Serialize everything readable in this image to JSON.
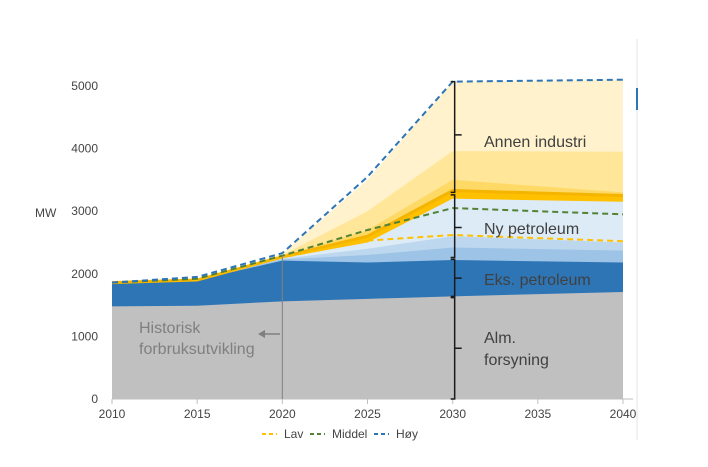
{
  "chart_data": {
    "type": "area",
    "title": "",
    "xlabel": "",
    "ylabel": "MW",
    "ylim": [
      0,
      5000
    ],
    "xlim": [
      2010,
      2040
    ],
    "x_ticks": [
      "2010",
      "2015",
      "2020",
      "2025",
      "2030",
      "2035",
      "2040"
    ],
    "y_ticks": [
      "0",
      "1000",
      "2000",
      "3000",
      "4000",
      "5000"
    ],
    "x": [
      2010,
      2015,
      2020,
      2025,
      2030,
      2040
    ],
    "stacked_areas": [
      {
        "name": "Alm. forsyning",
        "color": "#c0c0c0",
        "top": [
          1480,
          1490,
          1560,
          1600,
          1640,
          1710
        ]
      },
      {
        "name": "Eks. petroleum",
        "color": "#2e75b6",
        "top": [
          1860,
          1900,
          2210,
          2180,
          2220,
          2180
        ]
      },
      {
        "name": "Ny petroleum (lav)",
        "color": "#9dc3e6",
        "top": [
          1860,
          1900,
          2230,
          2300,
          2420,
          2370
        ]
      },
      {
        "name": "Ny petroleum (middel)",
        "color": "#bdd7ee",
        "top": [
          1860,
          1900,
          2240,
          2400,
          2600,
          2500
        ]
      },
      {
        "name": "Ny petroleum (høy)",
        "color": "#ddebf7",
        "top": [
          1860,
          1900,
          2250,
          2500,
          3200,
          3150
        ]
      },
      {
        "name": "Annen industri (lav)",
        "color": "#ffc000",
        "top": [
          1860,
          1900,
          2270,
          2600,
          3330,
          3250
        ]
      },
      {
        "name": "Annen industri (middel)",
        "color": "#ffd966",
        "top": [
          1860,
          1900,
          2280,
          2700,
          3500,
          3300
        ]
      },
      {
        "name": "Annen industri (middel-høy)",
        "color": "#ffe699",
        "top": [
          1860,
          1900,
          2300,
          3000,
          3960,
          3950
        ]
      },
      {
        "name": "Annen industri (høy)",
        "color": "#fff2cc",
        "top": [
          1860,
          1900,
          2320,
          3500,
          5070,
          5100
        ]
      }
    ],
    "series": [
      {
        "name": "Lav",
        "color": "#ffc000",
        "dash": "dashed",
        "values": [
          1860,
          1900,
          2260,
          2530,
          2620,
          2520
        ]
      },
      {
        "name": "Middel",
        "color": "#548235",
        "dash": "dashed",
        "values": [
          1860,
          1920,
          2290,
          2700,
          3050,
          2950
        ]
      },
      {
        "name": "Høy",
        "color": "#2e75b6",
        "dash": "dashed",
        "values": [
          1860,
          1950,
          2330,
          3550,
          5070,
          5100
        ]
      }
    ],
    "annotations": [
      {
        "text": "Annen industri",
        "tone": "dark"
      },
      {
        "text": "Ny petroleum",
        "tone": "dark"
      },
      {
        "text": "Eks. petroleum",
        "tone": "dark"
      },
      {
        "text": "Alm.",
        "tone": "dark"
      },
      {
        "text": "forsyning",
        "tone": "dark"
      },
      {
        "text": "Historisk",
        "tone": "grey"
      },
      {
        "text": "forbruksutvikling",
        "tone": "grey"
      }
    ],
    "legend": {
      "position": "bottom",
      "entries": [
        "Lav",
        "Middel",
        "Høy"
      ]
    }
  }
}
